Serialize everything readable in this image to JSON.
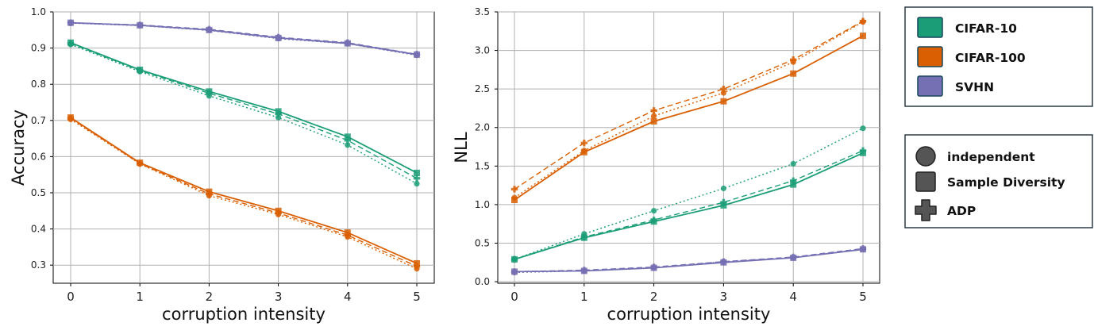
{
  "chart_data": [
    {
      "type": "line",
      "xlabel": "corruption intensity",
      "ylabel": "Accuracy",
      "x": [
        0,
        1,
        2,
        3,
        4,
        5
      ],
      "xticks": [
        "0",
        "1",
        "2",
        "3",
        "4",
        "5"
      ],
      "ylim": [
        0.25,
        1.0
      ],
      "yticks": [
        "0.3",
        "0.4",
        "0.5",
        "0.6",
        "0.7",
        "0.8",
        "0.9",
        "1.0"
      ],
      "grid": true,
      "series": [
        {
          "dataset": "CIFAR-10",
          "method": "Sample Diversity",
          "values": [
            0.915,
            0.84,
            0.78,
            0.725,
            0.655,
            0.555
          ]
        },
        {
          "dataset": "CIFAR-10",
          "method": "ADP",
          "values": [
            0.913,
            0.838,
            0.775,
            0.718,
            0.645,
            0.54
          ]
        },
        {
          "dataset": "CIFAR-10",
          "method": "independent",
          "values": [
            0.91,
            0.835,
            0.768,
            0.708,
            0.632,
            0.525
          ]
        },
        {
          "dataset": "CIFAR-100",
          "method": "Sample Diversity",
          "values": [
            0.708,
            0.583,
            0.503,
            0.45,
            0.39,
            0.305
          ]
        },
        {
          "dataset": "CIFAR-100",
          "method": "ADP",
          "values": [
            0.706,
            0.581,
            0.497,
            0.444,
            0.383,
            0.297
          ]
        },
        {
          "dataset": "CIFAR-100",
          "method": "independent",
          "values": [
            0.703,
            0.58,
            0.492,
            0.44,
            0.378,
            0.29
          ]
        },
        {
          "dataset": "SVHN",
          "method": "Sample Diversity",
          "values": [
            0.97,
            0.963,
            0.95,
            0.928,
            0.913,
            0.882
          ]
        },
        {
          "dataset": "SVHN",
          "method": "ADP",
          "values": [
            0.97,
            0.964,
            0.952,
            0.93,
            0.915,
            0.883
          ]
        },
        {
          "dataset": "SVHN",
          "method": "independent",
          "values": [
            0.969,
            0.962,
            0.949,
            0.926,
            0.912,
            0.88
          ]
        }
      ]
    },
    {
      "type": "line",
      "xlabel": "corruption intensity",
      "ylabel": "NLL",
      "x": [
        0,
        1,
        2,
        3,
        4,
        5
      ],
      "xticks": [
        "0",
        "1",
        "2",
        "3",
        "4",
        "5"
      ],
      "ylim": [
        -0.02,
        3.5
      ],
      "yticks": [
        "0.0",
        "0.5",
        "1.0",
        "1.5",
        "2.0",
        "2.5",
        "3.0",
        "3.5"
      ],
      "grid": true,
      "series": [
        {
          "dataset": "CIFAR-10",
          "method": "Sample Diversity",
          "values": [
            0.29,
            0.57,
            0.78,
            0.99,
            1.26,
            1.67
          ]
        },
        {
          "dataset": "CIFAR-10",
          "method": "ADP",
          "values": [
            0.29,
            0.58,
            0.8,
            1.03,
            1.31,
            1.7
          ]
        },
        {
          "dataset": "CIFAR-10",
          "method": "independent",
          "values": [
            0.29,
            0.62,
            0.92,
            1.21,
            1.53,
            1.99
          ]
        },
        {
          "dataset": "CIFAR-100",
          "method": "Sample Diversity",
          "values": [
            1.06,
            1.68,
            2.08,
            2.34,
            2.7,
            3.19
          ]
        },
        {
          "dataset": "CIFAR-100",
          "method": "ADP",
          "values": [
            1.2,
            1.8,
            2.22,
            2.5,
            2.88,
            3.38
          ]
        },
        {
          "dataset": "CIFAR-100",
          "method": "independent",
          "values": [
            1.09,
            1.7,
            2.15,
            2.45,
            2.85,
            3.37
          ]
        },
        {
          "dataset": "SVHN",
          "method": "Sample Diversity",
          "values": [
            0.13,
            0.14,
            0.18,
            0.25,
            0.31,
            0.42
          ]
        },
        {
          "dataset": "SVHN",
          "method": "ADP",
          "values": [
            0.13,
            0.15,
            0.19,
            0.26,
            0.32,
            0.43
          ]
        },
        {
          "dataset": "SVHN",
          "method": "independent",
          "values": [
            0.12,
            0.14,
            0.18,
            0.26,
            0.31,
            0.42
          ]
        }
      ]
    }
  ],
  "legend": {
    "datasets": [
      {
        "label": "CIFAR-10",
        "color": "#1b9e77"
      },
      {
        "label": "CIFAR-100",
        "color": "#d95f02"
      },
      {
        "label": "SVHN",
        "color": "#7570b3"
      }
    ],
    "methods": [
      {
        "label": "independent",
        "marker": "circle",
        "line": "dotted"
      },
      {
        "label": "Sample Diversity",
        "marker": "square",
        "line": "solid"
      },
      {
        "label": "ADP",
        "marker": "plus",
        "line": "dashed"
      }
    ],
    "marker_color": "#555555"
  }
}
